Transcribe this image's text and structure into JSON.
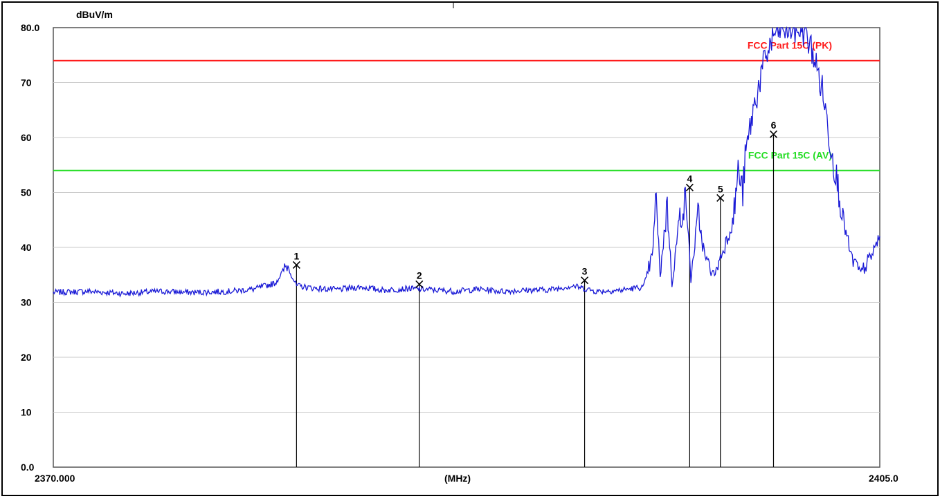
{
  "chart_data": {
    "type": "line",
    "title": "",
    "xlabel": "(MHz)",
    "ylabel": "dBuV/m",
    "xlim": [
      2370.0,
      2405.0
    ],
    "ylim": [
      0,
      80
    ],
    "x_tick_labels": {
      "start": "2370.000",
      "end": "2405.0"
    },
    "y_tick_labels": [
      "80.0",
      "70",
      "60",
      "50",
      "40",
      "30",
      "20",
      "10",
      "0.0"
    ],
    "y_tick_values": [
      80,
      70,
      60,
      50,
      40,
      30,
      20,
      10,
      0
    ],
    "grid": true,
    "series": [
      {
        "color": "#1a1ad6",
        "points": [
          [
            2370.0,
            31.8
          ],
          [
            2371.5,
            32.0
          ],
          [
            2373.0,
            31.6
          ],
          [
            2374.5,
            32.0
          ],
          [
            2376.0,
            31.8
          ],
          [
            2377.5,
            32.0
          ],
          [
            2378.5,
            32.4
          ],
          [
            2379.4,
            33.5
          ],
          [
            2379.9,
            36.8
          ],
          [
            2380.3,
            33.0
          ],
          [
            2381.0,
            32.6
          ],
          [
            2382.0,
            32.3
          ],
          [
            2383.0,
            32.8
          ],
          [
            2384.0,
            32.2
          ],
          [
            2385.0,
            32.5
          ],
          [
            2386.0,
            32.3
          ],
          [
            2387.0,
            32.0
          ],
          [
            2388.0,
            32.4
          ],
          [
            2389.0,
            32.0
          ],
          [
            2390.0,
            32.2
          ],
          [
            2391.0,
            32.3
          ],
          [
            2392.0,
            33.0
          ],
          [
            2393.0,
            32.0
          ],
          [
            2394.0,
            32.2
          ],
          [
            2395.0,
            32.8
          ],
          [
            2395.4,
            39.0
          ],
          [
            2395.5,
            50.5
          ],
          [
            2395.7,
            35.0
          ],
          [
            2396.0,
            48.0
          ],
          [
            2396.2,
            33.0
          ],
          [
            2396.5,
            45.0
          ],
          [
            2396.8,
            49.0
          ],
          [
            2397.0,
            34.0
          ],
          [
            2397.3,
            46.0
          ],
          [
            2397.6,
            38.0
          ],
          [
            2398.0,
            35.0
          ],
          [
            2398.4,
            40.0
          ],
          [
            2398.8,
            45.0
          ],
          [
            2399.0,
            54.0
          ],
          [
            2399.2,
            50.0
          ],
          [
            2399.3,
            56.0
          ],
          [
            2399.4,
            59.0
          ],
          [
            2399.6,
            64.0
          ],
          [
            2399.9,
            70.0
          ],
          [
            2400.2,
            75.0
          ],
          [
            2400.6,
            79.5
          ],
          [
            2401.2,
            80.0
          ],
          [
            2401.8,
            79.5
          ],
          [
            2402.2,
            75.0
          ],
          [
            2402.6,
            68.0
          ],
          [
            2402.9,
            59.0
          ],
          [
            2403.2,
            52.0
          ],
          [
            2403.5,
            44.0
          ],
          [
            2403.8,
            38.0
          ],
          [
            2404.2,
            35.5
          ],
          [
            2404.6,
            38.0
          ],
          [
            2405.0,
            42.0
          ]
        ]
      }
    ],
    "limit_lines": [
      {
        "name": "FCC Part 15C (PK)",
        "value": 74,
        "color": "#ff1a1a"
      },
      {
        "name": "FCC Part 15C (AV)",
        "value": 54,
        "color": "#22dd22"
      }
    ],
    "markers": [
      {
        "label": "1",
        "x": 2380.3,
        "y": 36.8
      },
      {
        "label": "2",
        "x": 2385.5,
        "y": 33.3
      },
      {
        "label": "3",
        "x": 2392.5,
        "y": 34.0
      },
      {
        "label": "4",
        "x": 2396.95,
        "y": 50.9
      },
      {
        "label": "5",
        "x": 2398.25,
        "y": 49.0
      },
      {
        "label": "6",
        "x": 2400.5,
        "y": 60.6
      }
    ]
  }
}
